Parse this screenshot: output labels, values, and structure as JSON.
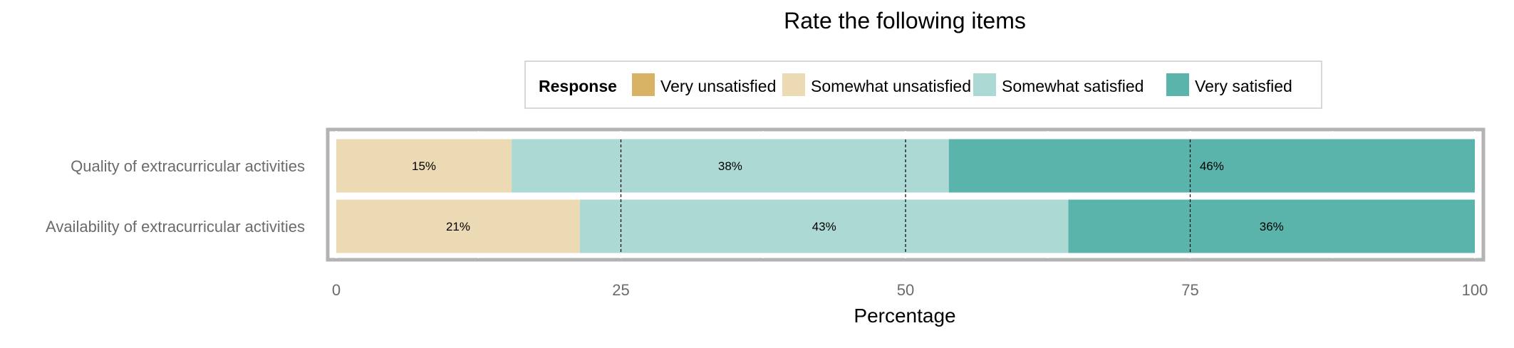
{
  "chart_data": {
    "type": "bar",
    "orientation": "horizontal",
    "stacked": true,
    "title": "Rate the following items",
    "xlabel": "Percentage",
    "ylabel": "",
    "xlim": [
      0,
      100
    ],
    "xticks": [
      0,
      25,
      50,
      75,
      100
    ],
    "reference_lines": [
      25,
      50,
      75
    ],
    "legend": {
      "title": "Response",
      "position": "top",
      "entries": [
        {
          "label": "Very unsatisfied",
          "color": "#D8B365"
        },
        {
          "label": "Somewhat unsatisfied",
          "color": "#EBDAB4"
        },
        {
          "label": "Somewhat satisfied",
          "color": "#ADD9D5"
        },
        {
          "label": "Very satisfied",
          "color": "#5AB4AC"
        }
      ]
    },
    "categories": [
      "Quality of extracurricular activities",
      "Availability of extracurricular activities"
    ],
    "series": [
      {
        "name": "Very unsatisfied",
        "color": "#D8B365",
        "values": [
          0,
          0
        ],
        "labels": [
          "",
          ""
        ]
      },
      {
        "name": "Somewhat unsatisfied",
        "color": "#EBDAB4",
        "values": [
          15.4,
          21.4
        ],
        "labels": [
          "15%",
          "21%"
        ]
      },
      {
        "name": "Somewhat satisfied",
        "color": "#ADD9D5",
        "values": [
          38.4,
          42.9
        ],
        "labels": [
          "38%",
          "43%"
        ]
      },
      {
        "name": "Very satisfied",
        "color": "#5AB4AC",
        "values": [
          46.2,
          35.7
        ],
        "labels": [
          "46%",
          "36%"
        ]
      }
    ]
  }
}
